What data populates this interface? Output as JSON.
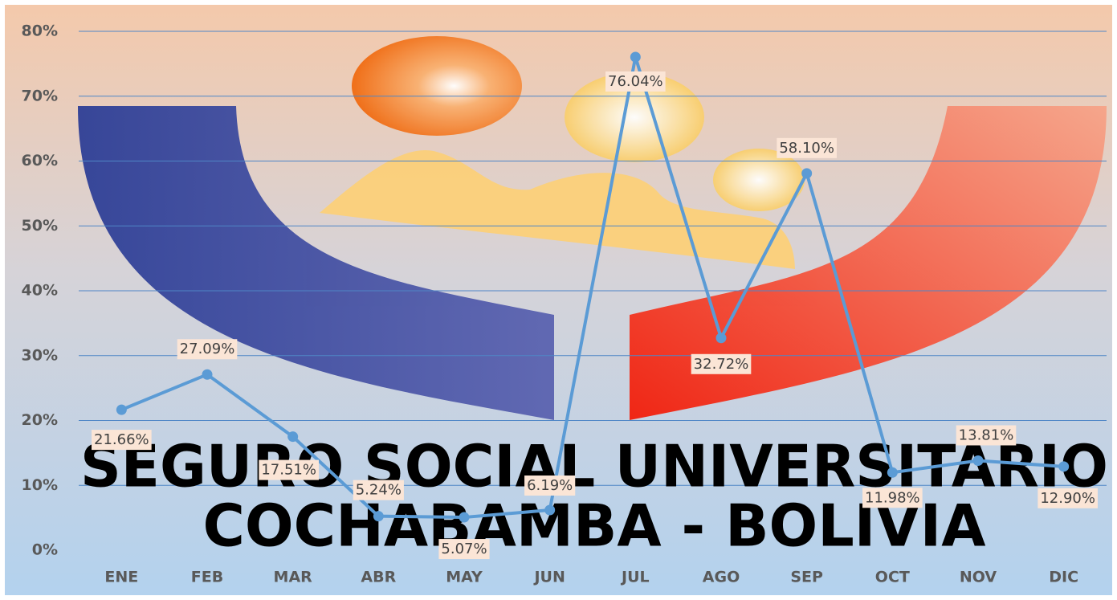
{
  "chart_data": {
    "type": "line",
    "categories": [
      "ENE",
      "FEB",
      "MAR",
      "ABR",
      "MAY",
      "JUN",
      "JUL",
      "AGO",
      "SEP",
      "OCT",
      "NOV",
      "DIC"
    ],
    "series": [
      {
        "color": "#5b9bd5",
        "values": [
          21.66,
          27.09,
          17.51,
          5.24,
          5.07,
          6.19,
          76.04,
          32.72,
          58.1,
          11.98,
          13.81,
          12.9
        ],
        "value_labels": [
          "21.66%",
          "27.09%",
          "17.51%",
          "5.24%",
          "5.07%",
          "6.19%",
          "76.04%",
          "32.72%",
          "58.10%",
          "11.98%",
          "13.81%",
          "12.90%"
        ]
      }
    ],
    "ylim": [
      0,
      80
    ],
    "yticks": [
      {
        "value": 0,
        "label": "0%"
      },
      {
        "value": 10,
        "label": "10%"
      },
      {
        "value": 20,
        "label": "20%"
      },
      {
        "value": 30,
        "label": "30%"
      },
      {
        "value": 40,
        "label": "40%"
      },
      {
        "value": 50,
        "label": "50%"
      },
      {
        "value": 60,
        "label": "60%"
      },
      {
        "value": 70,
        "label": "70%"
      },
      {
        "value": 80,
        "label": "80%"
      }
    ],
    "grid": true,
    "annotations": [
      "SEGURO SOCIAL UNIVERSITARIO",
      "COCHABAMBA - BOLIVIA"
    ]
  }
}
